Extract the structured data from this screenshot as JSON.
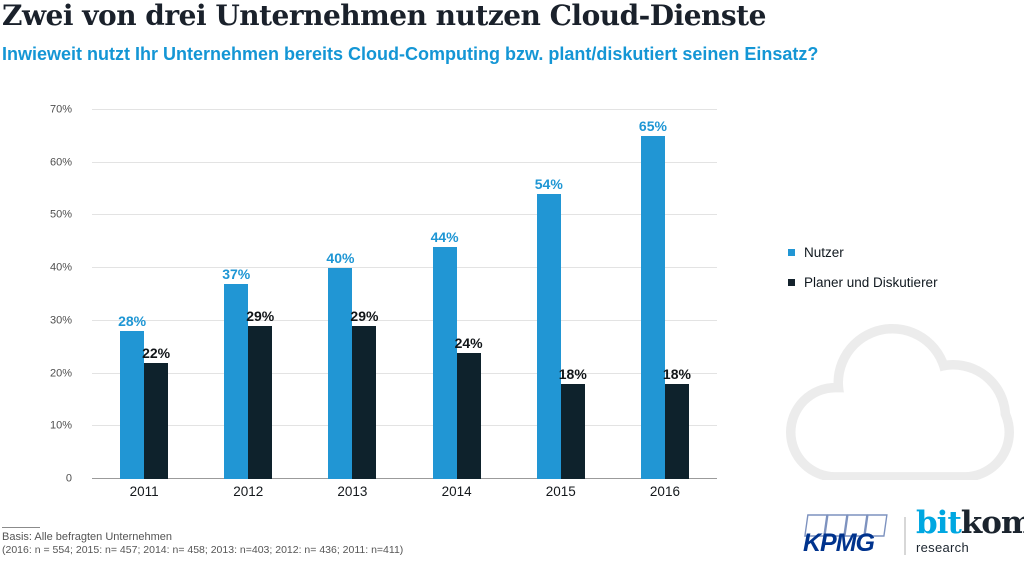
{
  "header": {
    "title": "Zwei von drei Unternehmen nutzen Cloud-Dienste",
    "subtitle": "Inwieweit nutzt Ihr Unternehmen bereits Cloud-Computing bzw. plant/diskutiert seinen Einsatz?"
  },
  "colors": {
    "accent_blue": "#1496d5",
    "nutzer_blue": "#2196d4",
    "planer_dark": "#0e222c",
    "grid": "#e3e3e3",
    "axis": "#9b9b9b",
    "cloud_outline": "#ececec",
    "kpmg_blue": "#00338d",
    "bitkom_blue": "#00a7e1",
    "bitkom_dark": "#1b242e"
  },
  "chart_data": {
    "type": "bar",
    "categories": [
      "2011",
      "2012",
      "2013",
      "2014",
      "2015",
      "2016"
    ],
    "series": [
      {
        "name": "Nutzer",
        "values": [
          28,
          37,
          40,
          44,
          54,
          65
        ],
        "color": "#2196d4",
        "label_color": "#1e96d4"
      },
      {
        "name": "Planer und Diskutierer",
        "values": [
          22,
          29,
          29,
          24,
          18,
          18
        ],
        "color": "#0e222c",
        "label_color": "#111518"
      }
    ],
    "title": "Zwei von drei Unternehmen nutzen Cloud-Dienste",
    "xlabel": "",
    "ylabel": "",
    "ylim": [
      0,
      70
    ],
    "yticks": [
      {
        "value": 70,
        "label": "70%"
      },
      {
        "value": 60,
        "label": "60%"
      },
      {
        "value": 50,
        "label": "50%"
      },
      {
        "value": 40,
        "label": "40%"
      },
      {
        "value": 30,
        "label": "30%"
      },
      {
        "value": 20,
        "label": "20%"
      },
      {
        "value": 10,
        "label": "10%"
      },
      {
        "value": 0,
        "label": "0"
      }
    ],
    "grid": true,
    "legend_position": "right",
    "value_label_suffix": "%"
  },
  "legend": {
    "items": [
      {
        "label": "Nutzer",
        "color": "#2196d4"
      },
      {
        "label": "Planer und Diskutierer",
        "color": "#14222c"
      }
    ]
  },
  "footer": {
    "basis_line1": "Basis: Alle befragten Unternehmen",
    "basis_line2": "(2016: n = 554; 2015: n= 457; 2014: n= 458; 2013: n=403; 2012: n= 436; 2011: n=411)"
  },
  "logos": {
    "kpmg_text": "KPMG",
    "bitkom_part1": "bit",
    "bitkom_part2": "kom",
    "bitkom_research": "research"
  }
}
